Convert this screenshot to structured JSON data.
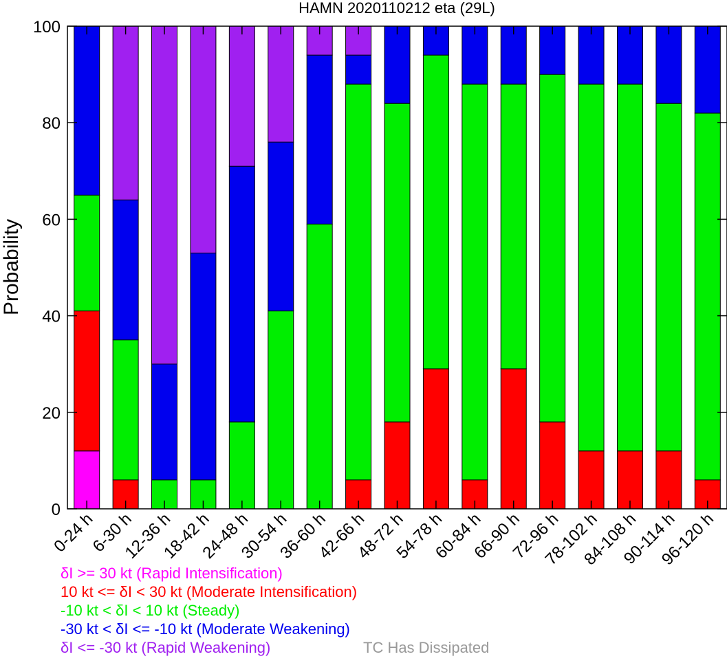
{
  "chart_data": {
    "type": "bar",
    "stacked": true,
    "title": "HAMN 2020110212 eta (29L)",
    "xlabel": "",
    "ylabel": "Probability",
    "ylim": [
      0,
      100
    ],
    "yticks": [
      0,
      20,
      40,
      60,
      80,
      100
    ],
    "categories": [
      "0-24 h",
      "6-30 h",
      "12-36 h",
      "18-42 h",
      "24-48 h",
      "30-54 h",
      "36-60 h",
      "42-66 h",
      "48-72 h",
      "54-78 h",
      "60-84 h",
      "66-90 h",
      "72-96 h",
      "78-102 h",
      "84-108 h",
      "90-114 h",
      "96-120 h"
    ],
    "series": [
      {
        "name": "δI >= 30 kt (Rapid Intensification)",
        "color": "#ff00ff",
        "values": [
          12,
          0,
          0,
          0,
          0,
          0,
          0,
          0,
          0,
          0,
          0,
          0,
          0,
          0,
          0,
          0,
          0
        ]
      },
      {
        "name": "10 kt <= δI < 30 kt (Moderate Intensification)",
        "color": "#ff0000",
        "values": [
          29,
          6,
          0,
          0,
          0,
          0,
          0,
          6,
          18,
          29,
          6,
          29,
          18,
          12,
          12,
          12,
          6
        ]
      },
      {
        "name": "-10 kt < δI < 10 kt (Steady)",
        "color": "#00ee00",
        "values": [
          24,
          29,
          6,
          6,
          18,
          41,
          59,
          82,
          66,
          65,
          82,
          59,
          72,
          76,
          76,
          72,
          76
        ]
      },
      {
        "name": "-30 kt < δI <= -10 kt (Moderate Weakening)",
        "color": "#0000ee",
        "values": [
          35,
          29,
          24,
          47,
          53,
          35,
          35,
          6,
          16,
          6,
          12,
          12,
          10,
          12,
          12,
          16,
          18
        ]
      },
      {
        "name": "δI <= -30 kt (Rapid Weakening)",
        "color": "#a020f0",
        "values": [
          0,
          36,
          70,
          47,
          29,
          24,
          6,
          6,
          0,
          0,
          0,
          0,
          0,
          0,
          0,
          0,
          0
        ]
      }
    ],
    "extra_legend": {
      "label": "TC Has Dissipated",
      "color": "#999999"
    },
    "grid": false
  }
}
